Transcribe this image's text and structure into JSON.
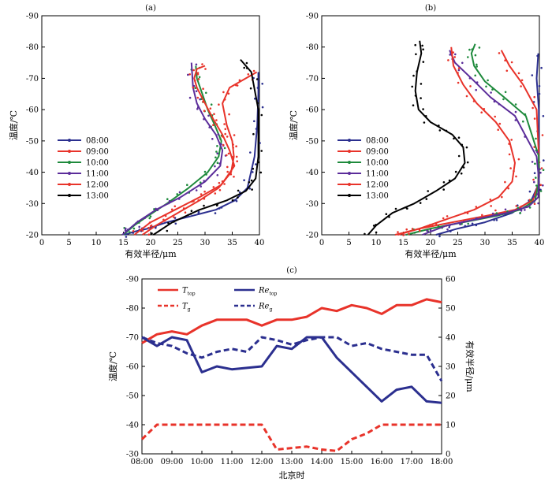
{
  "chart_data": [
    {
      "type": "line",
      "title": "(a)",
      "xlabel": "有效半径/μm",
      "ylabel": "温度/℃",
      "xlim": [
        0,
        40
      ],
      "ylim": [
        -20,
        -90
      ],
      "xticks": [
        "0",
        "5",
        "10",
        "15",
        "20",
        "25",
        "30",
        "35",
        "40"
      ],
      "yticks": [
        "-20",
        "-30",
        "-40",
        "-50",
        "-60",
        "-70",
        "-80",
        "-90"
      ],
      "legend": "left",
      "series": [
        {
          "name": "08:00",
          "color": "#2b2f8f",
          "x": [
            15.2,
            17.0,
            19.5,
            23.0,
            27.5,
            32.0,
            35.5,
            37.8,
            39.1,
            39.6,
            39.8,
            39.8
          ],
          "y": [
            -20,
            -21,
            -22,
            -24,
            -26,
            -28,
            -31,
            -35,
            -45,
            -55,
            -65,
            -72
          ]
        },
        {
          "name": "09:00",
          "color": "#e8332a",
          "x": [
            18.5,
            21.0,
            25.0,
            29.0,
            32.5,
            34.8,
            35.3,
            35.0,
            34.0,
            33.2,
            34.5,
            37.5,
            39.5
          ],
          "y": [
            -20,
            -23,
            -27,
            -31,
            -35,
            -40,
            -45,
            -50,
            -55,
            -62,
            -67,
            -70,
            -72
          ]
        },
        {
          "name": "10:00",
          "color": "#1e8a3c",
          "x": [
            15.0,
            17.0,
            19.5,
            23.0,
            27.0,
            30.5,
            32.5,
            33.0,
            31.8,
            30.5,
            29.5,
            28.5,
            28.3
          ],
          "y": [
            -20,
            -23,
            -26,
            -30,
            -35,
            -40,
            -45,
            -50,
            -55,
            -60,
            -65,
            -70,
            -74
          ]
        },
        {
          "name": "11:00",
          "color": "#5b2d9a",
          "x": [
            14.8,
            17.5,
            21.0,
            25.5,
            30.0,
            32.8,
            33.2,
            32.0,
            30.0,
            28.5,
            27.8,
            27.5
          ],
          "y": [
            -20,
            -24,
            -28,
            -32,
            -37,
            -42,
            -47,
            -52,
            -57,
            -62,
            -67,
            -75
          ]
        },
        {
          "name": "12:00",
          "color": "#e8332a",
          "x": [
            17.0,
            20.0,
            24.5,
            29.0,
            33.0,
            35.4,
            34.5,
            33.2,
            31.5,
            30.0,
            28.5,
            28.0,
            28.5,
            30.0
          ],
          "y": [
            -20,
            -24,
            -28,
            -32,
            -36,
            -42,
            -47,
            -52,
            -57,
            -62,
            -67,
            -70,
            -73,
            -74
          ]
        },
        {
          "name": "13:00",
          "color": "#000000",
          "x": [
            20.5,
            24.0,
            29.0,
            34.0,
            37.5,
            39.3,
            39.8,
            39.8,
            38.5,
            36.5
          ],
          "y": [
            -20,
            -24,
            -28,
            -31,
            -34,
            -38,
            -45,
            -60,
            -72,
            -76
          ]
        }
      ]
    },
    {
      "type": "line",
      "title": "(b)",
      "xlabel": "有效半径/μm",
      "ylabel": "温度/℃",
      "xlim": [
        0,
        40
      ],
      "ylim": [
        -20,
        -90
      ],
      "xticks": [
        "0",
        "5",
        "10",
        "15",
        "20",
        "25",
        "30",
        "35",
        "40"
      ],
      "yticks": [
        "-20",
        "-30",
        "-40",
        "-50",
        "-60",
        "-70",
        "-80",
        "-90"
      ],
      "legend": "left",
      "series": [
        {
          "name": "08:00",
          "color": "#2b2f8f",
          "x": [
            21.0,
            25.0,
            30.0,
            35.0,
            38.5,
            39.8,
            39.9,
            39.9,
            39.5,
            39.8
          ],
          "y": [
            -20,
            -22,
            -24,
            -27,
            -31,
            -36,
            -45,
            -60,
            -70,
            -78
          ]
        },
        {
          "name": "09:00",
          "color": "#e8332a",
          "x": [
            13.5,
            18.0,
            24.0,
            30.0,
            35.5,
            38.8,
            39.8,
            39.9,
            39.5,
            37.0,
            34.5,
            33.0
          ],
          "y": [
            -20,
            -22,
            -24,
            -26,
            -28,
            -31,
            -36,
            -45,
            -60,
            -68,
            -74,
            -79
          ]
        },
        {
          "name": "10:00",
          "color": "#1e8a3c",
          "x": [
            15.5,
            20.0,
            26.0,
            32.0,
            36.5,
            39.2,
            39.8,
            39.9,
            37.5,
            33.5,
            30.0,
            28.0,
            27.5,
            28.2
          ],
          "y": [
            -20,
            -22,
            -24,
            -26,
            -28,
            -31,
            -36,
            -45,
            -58,
            -64,
            -69,
            -74,
            -78,
            -81
          ]
        },
        {
          "name": "11:00",
          "color": "#5b2d9a",
          "x": [
            18.5,
            23.0,
            28.5,
            34.0,
            38.0,
            39.8,
            39.9,
            39.5,
            35.5,
            31.0,
            27.5,
            24.5,
            23.5
          ],
          "y": [
            -20,
            -23,
            -25,
            -27,
            -29,
            -32,
            -38,
            -45,
            -58,
            -64,
            -70,
            -75,
            -79
          ]
        },
        {
          "name": "12:00",
          "color": "#e8332a",
          "x": [
            14.0,
            18.0,
            23.0,
            28.0,
            32.5,
            35.0,
            35.5,
            34.5,
            32.0,
            28.5,
            26.0,
            24.2,
            23.8
          ],
          "y": [
            -20,
            -22,
            -25,
            -28,
            -32,
            -37,
            -43,
            -50,
            -56,
            -62,
            -68,
            -74,
            -80
          ]
        },
        {
          "name": "13:00",
          "color": "#000000",
          "x": [
            8.5,
            10.0,
            13.0,
            17.0,
            21.0,
            24.5,
            26.3,
            26.0,
            24.0,
            20.0,
            17.8,
            17.2,
            17.5,
            18.3,
            18.0
          ],
          "y": [
            -20,
            -23,
            -27,
            -30,
            -34,
            -38,
            -43,
            -48,
            -52,
            -56,
            -60,
            -66,
            -72,
            -78,
            -82
          ]
        }
      ]
    },
    {
      "type": "line",
      "title": "(c)",
      "xlabel": "北京时",
      "ylabel": "温度/℃",
      "ylabel_right": "有效半径/μm",
      "categories": [
        "08:00",
        "09:00",
        "10:00",
        "11:00",
        "12:00",
        "13:00",
        "14:00",
        "15:00",
        "16:00",
        "17:00",
        "18:00"
      ],
      "ylim": [
        -30,
        -90
      ],
      "ylim_right": [
        0,
        60
      ],
      "yticks": [
        "-30",
        "-40",
        "-50",
        "-60",
        "-70",
        "-80",
        "-90"
      ],
      "yticks_right": [
        "0",
        "10",
        "20",
        "30",
        "40",
        "50",
        "60"
      ],
      "legend": "top-left",
      "x": [
        8.0,
        8.5,
        9.0,
        9.5,
        10.0,
        10.5,
        11.0,
        11.5,
        12.0,
        12.5,
        13.0,
        13.5,
        14.0,
        14.5,
        15.0,
        15.5,
        16.0,
        16.5,
        17.0,
        17.5,
        18.0
      ],
      "series": [
        {
          "name": "T_top",
          "axis": "left",
          "color": "#e8332a",
          "style": "solid",
          "values": [
            -68,
            -71,
            -72,
            -71,
            -74,
            -76,
            -76,
            -76,
            -74,
            -76,
            -76,
            -77,
            -80,
            -79,
            -81,
            -80,
            -78,
            -81,
            -81,
            -83,
            -82
          ]
        },
        {
          "name": "Re_top",
          "axis": "right",
          "color": "#2b2f8f",
          "style": "solid",
          "values": [
            40,
            37,
            40,
            39,
            28,
            30,
            29,
            29.5,
            30,
            37,
            36,
            40,
            40,
            33,
            28,
            23,
            18,
            22,
            23,
            18,
            17.5
          ]
        },
        {
          "name": "T_g",
          "axis": "left",
          "color": "#e8332a",
          "style": "dashed",
          "values": [
            -35,
            -40,
            -40,
            -40,
            -40,
            -40,
            -40,
            -40,
            -40,
            -31.5,
            -32,
            -32.5,
            -31.5,
            -31,
            -35,
            -37,
            -40,
            -40,
            -40,
            -40,
            -40
          ]
        },
        {
          "name": "Re_g",
          "axis": "right",
          "color": "#2b2f8f",
          "style": "dashed",
          "values": [
            40,
            38,
            37,
            34.5,
            33,
            35,
            36,
            35,
            40,
            39,
            37.5,
            39,
            40,
            40,
            37,
            38,
            36,
            35,
            34,
            34,
            25
          ]
        }
      ],
      "legend_labels": [
        {
          "main": "T",
          "sub": "top"
        },
        {
          "main": "Re",
          "sub": "top"
        },
        {
          "main": "T",
          "sub": "g"
        },
        {
          "main": "Re",
          "sub": "g"
        }
      ]
    }
  ]
}
